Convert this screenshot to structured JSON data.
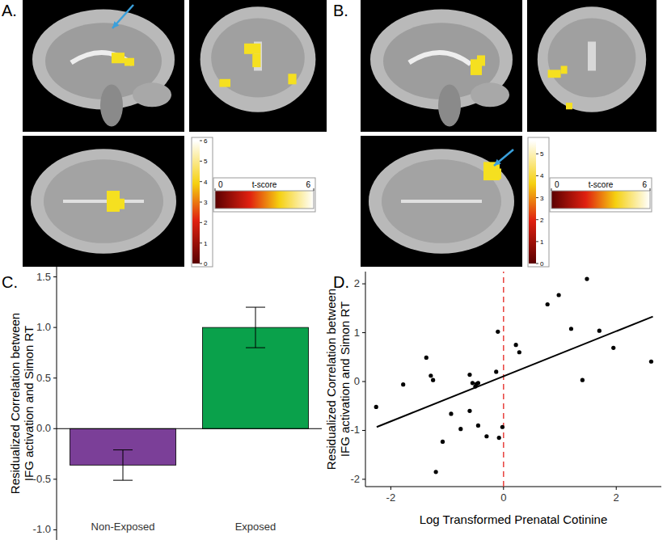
{
  "panels": [
    {
      "label": "A.",
      "colorbar": {
        "title": "t-score",
        "range": [
          0,
          6
        ],
        "ticks": [
          0,
          6
        ]
      },
      "colorbar_vertical": {
        "range": [
          0,
          6
        ],
        "ticks": [
          0,
          1,
          2,
          3,
          4,
          5,
          6
        ]
      }
    },
    {
      "label": "B.",
      "colorbar": {
        "title": "t-score",
        "range": [
          0,
          6
        ],
        "ticks": [
          0,
          6
        ]
      },
      "colorbar_vertical": {
        "range": [
          0,
          5.6
        ],
        "ticks": [
          0,
          1,
          2,
          3,
          4,
          5
        ]
      }
    }
  ],
  "chart_data": [
    {
      "type": "bar",
      "title": "C.",
      "categories": [
        "Non-Exposed",
        "Exposed"
      ],
      "values": [
        -0.36,
        1.0
      ],
      "errors": [
        0.15,
        0.2
      ],
      "colors": [
        "#7b3f98",
        "#0aa14b"
      ],
      "ylabel": "Residualized Correlation between\nIFG activation and Simon RT",
      "ylim": [
        -1.1,
        1.6
      ],
      "yticks": [
        {
          "value": -1,
          "label": "-1.0"
        },
        {
          "value": -0.5,
          "label": "-0.5"
        },
        {
          "value": 0,
          "label": "0.0"
        },
        {
          "value": 0.5,
          "label": "0.5"
        },
        {
          "value": 1,
          "label": "1.0"
        },
        {
          "value": 1.5,
          "label": "1.5"
        }
      ],
      "grid": false
    },
    {
      "type": "scatter",
      "title": "D.",
      "xlabel": "Log Transformed Prenatal Cotinine",
      "ylabel": "Residualized Correlation between\nIFG activation and Simon RT",
      "x": [
        -2.26,
        -1.78,
        -1.37,
        -1.29,
        -1.25,
        -1.2,
        -1.08,
        -0.93,
        -0.76,
        -0.6,
        -0.55,
        -0.5,
        -0.48,
        -0.45,
        -0.6,
        -0.45,
        -0.3,
        -0.13,
        -0.1,
        -0.08,
        -0.02,
        0.22,
        0.28,
        0.78,
        0.98,
        1.2,
        1.4,
        1.48,
        1.7,
        1.95,
        2.62
      ],
      "values": [
        -0.52,
        -0.06,
        0.49,
        0.12,
        0.03,
        -1.85,
        -1.23,
        -0.66,
        -0.97,
        0.14,
        -0.03,
        -0.1,
        -0.05,
        -0.03,
        -0.6,
        -0.9,
        -1.12,
        0.2,
        1.02,
        -1.15,
        -0.93,
        0.75,
        0.6,
        1.58,
        1.77,
        1.08,
        0.03,
        2.1,
        1.04,
        0.69,
        0.41
      ],
      "color": "#000000",
      "marker": "circle",
      "fit": {
        "x": [
          -2.25,
          2.65
        ],
        "values": [
          -0.93,
          1.33
        ]
      },
      "vline": {
        "value": 0,
        "color": "#e8413c",
        "line_style": "dashed"
      },
      "xlim": [
        -2.45,
        2.8
      ],
      "ylim": [
        -2.15,
        2.25
      ],
      "xticks": [
        -2,
        0,
        2
      ],
      "yticks": [
        -2,
        -1,
        0,
        1,
        2
      ],
      "grid": false
    }
  ]
}
